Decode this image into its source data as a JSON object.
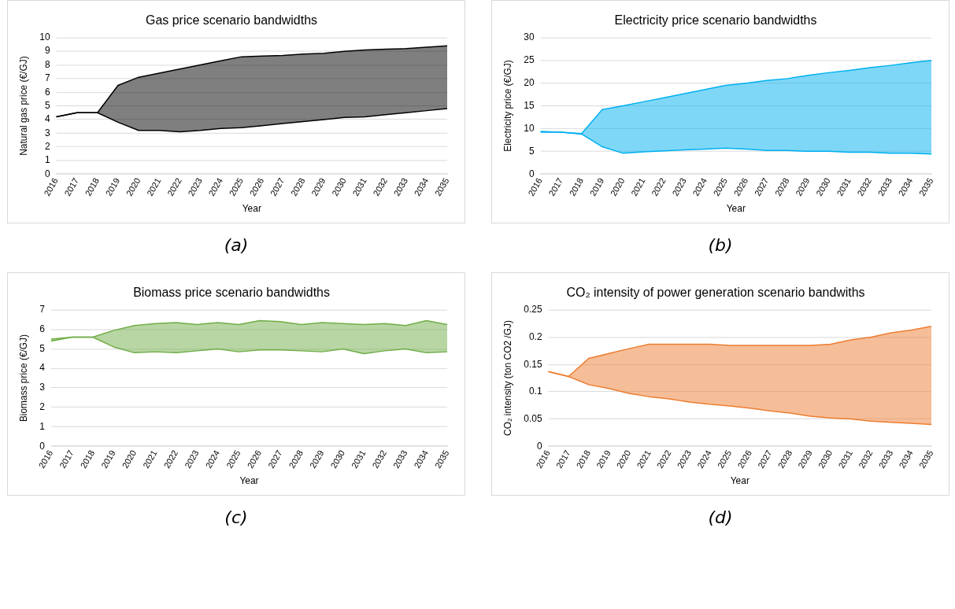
{
  "chart_data": [
    {
      "type": "area",
      "title": "Gas price scenario bandwidths",
      "xlabel": "Year",
      "ylabel": "Natural gas price (€/GJ)",
      "categories": [
        "2016",
        "2017",
        "2018",
        "2019",
        "2020",
        "2021",
        "2022",
        "2023",
        "2024",
        "2025",
        "2026",
        "2027",
        "2028",
        "2029",
        "2030",
        "2031",
        "2032",
        "2033",
        "2034",
        "2035"
      ],
      "ylim": [
        0,
        10
      ],
      "yticks": [
        0,
        1,
        2,
        3,
        4,
        5,
        6,
        7,
        8,
        9,
        10
      ],
      "grid": "y",
      "legend": false,
      "annotations": [
        "(a)"
      ],
      "series": [
        {
          "type": "line",
          "color": "#000000",
          "values": [
            4.2,
            4.5,
            4.5,
            3.8,
            3.2,
            3.2,
            3.1,
            3.2,
            3.35,
            3.4,
            3.55,
            3.7,
            3.85,
            4.0,
            4.15,
            4.2,
            4.35,
            4.5,
            4.65,
            4.8
          ]
        },
        {
          "type": "area",
          "color": "#000000",
          "values": [
            4.2,
            4.5,
            4.5,
            6.5,
            7.1,
            7.4,
            7.7,
            8.0,
            8.3,
            8.6,
            8.65,
            8.7,
            8.8,
            8.85,
            9.0,
            9.1,
            9.15,
            9.2,
            9.3,
            9.4
          ]
        }
      ]
    },
    {
      "type": "area",
      "title": "Electricity price scenario bandwidths",
      "xlabel": "Year",
      "ylabel": "Electricity price (€/GJ)",
      "categories": [
        "2016",
        "2017",
        "2018",
        "2019",
        "2020",
        "2021",
        "2022",
        "2023",
        "2024",
        "2025",
        "2026",
        "2027",
        "2028",
        "2029",
        "2030",
        "2031",
        "2032",
        "2033",
        "2034",
        "2035"
      ],
      "ylim": [
        0,
        30
      ],
      "yticks": [
        0,
        5,
        10,
        15,
        20,
        25,
        30
      ],
      "grid": "y",
      "legend": false,
      "annotations": [
        "(b)"
      ],
      "series": [
        {
          "type": "line",
          "color": "#00b0f0",
          "values": [
            9.2,
            9.2,
            8.8,
            6.0,
            4.6,
            4.9,
            5.1,
            5.3,
            5.5,
            5.7,
            5.5,
            5.2,
            5.2,
            5.0,
            5.0,
            4.8,
            4.8,
            4.6,
            4.6,
            4.4
          ]
        },
        {
          "type": "area",
          "color": "#00b0f0",
          "values": [
            9.4,
            9.2,
            8.9,
            14.2,
            15.0,
            15.9,
            16.8,
            17.7,
            18.6,
            19.5,
            20.0,
            20.6,
            21.0,
            21.7,
            22.3,
            22.8,
            23.4,
            23.9,
            24.5,
            25.0
          ]
        }
      ]
    },
    {
      "type": "area",
      "title": "Biomass price scenario bandwidths",
      "xlabel": "Year",
      "ylabel": "Biomass price (€/GJ)",
      "categories": [
        "2016",
        "2017",
        "2018",
        "2019",
        "2020",
        "2021",
        "2022",
        "2023",
        "2024",
        "2025",
        "2026",
        "2027",
        "2028",
        "2029",
        "2030",
        "2031",
        "2032",
        "2033",
        "2034",
        "2035"
      ],
      "ylim": [
        0,
        7
      ],
      "yticks": [
        0,
        1,
        2,
        3,
        4,
        5,
        6,
        7
      ],
      "grid": "y",
      "legend": false,
      "annotations": [
        "(c)"
      ],
      "series": [
        {
          "type": "line",
          "color": "#70ad47",
          "values": [
            5.4,
            5.6,
            5.6,
            5.1,
            4.8,
            4.85,
            4.8,
            4.9,
            5.0,
            4.85,
            4.95,
            4.95,
            4.9,
            4.85,
            5.0,
            4.75,
            4.9,
            5.0,
            4.8,
            4.85
          ]
        },
        {
          "type": "area",
          "color": "#70ad47",
          "values": [
            5.5,
            5.6,
            5.6,
            5.95,
            6.2,
            6.3,
            6.35,
            6.25,
            6.35,
            6.25,
            6.45,
            6.4,
            6.25,
            6.35,
            6.3,
            6.25,
            6.3,
            6.2,
            6.45,
            6.25
          ]
        }
      ]
    },
    {
      "type": "area",
      "title": "CO₂ intensity of power generation scenario bandwiths",
      "xlabel": "Year",
      "ylabel": "CO₂ intensity (ton CO2 /GJ)",
      "categories": [
        "2016",
        "2017",
        "2018",
        "2019",
        "2020",
        "2021",
        "2022",
        "2023",
        "2024",
        "2025",
        "2026",
        "2027",
        "2028",
        "2029",
        "2030",
        "2031",
        "2032",
        "2033",
        "2034",
        "2035"
      ],
      "ylim": [
        0,
        0.25
      ],
      "yticks": [
        0,
        0.05,
        0.1,
        0.15,
        0.2,
        0.25
      ],
      "grid": "y",
      "legend": false,
      "annotations": [
        "(d)"
      ],
      "series": [
        {
          "type": "line",
          "color": "#ed7d31",
          "values": [
            0.137,
            0.128,
            0.113,
            0.106,
            0.097,
            0.091,
            0.087,
            0.081,
            0.077,
            0.074,
            0.07,
            0.065,
            0.061,
            0.055,
            0.052,
            0.05,
            0.046,
            0.044,
            0.042,
            0.04
          ]
        },
        {
          "type": "area",
          "color": "#ed7d31",
          "values": [
            0.137,
            0.128,
            0.161,
            0.17,
            0.179,
            0.187,
            0.187,
            0.187,
            0.187,
            0.185,
            0.185,
            0.185,
            0.185,
            0.185,
            0.187,
            0.195,
            0.2,
            0.208,
            0.213,
            0.22
          ]
        }
      ]
    }
  ]
}
